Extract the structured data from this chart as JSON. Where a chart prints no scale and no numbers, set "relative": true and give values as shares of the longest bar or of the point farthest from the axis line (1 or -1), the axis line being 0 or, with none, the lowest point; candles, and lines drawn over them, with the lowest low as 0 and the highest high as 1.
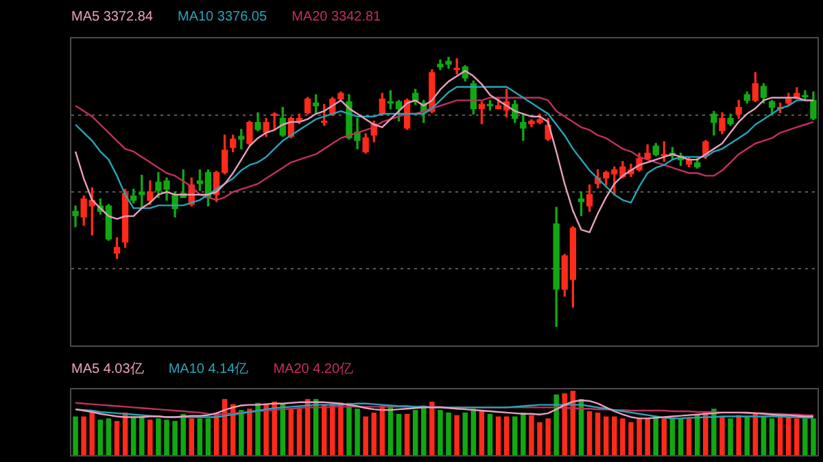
{
  "chart_data": [
    {
      "type": "candlestick",
      "relative": true,
      "grid": "y",
      "legend": "top left",
      "marker": "none",
      "categories": [
        null,
        null,
        null,
        null,
        null,
        null,
        null,
        null,
        null,
        null,
        null,
        null,
        null,
        null,
        null,
        null,
        null,
        null,
        null,
        null,
        null,
        null,
        null,
        null,
        null,
        null,
        null,
        null,
        null,
        null,
        null,
        null,
        null,
        null,
        null,
        null,
        null,
        null,
        null,
        null,
        null,
        null,
        null,
        null,
        null,
        null,
        null,
        null,
        null,
        null,
        null,
        null,
        null,
        null,
        null,
        null,
        null,
        null,
        null,
        null,
        null,
        null,
        null,
        null,
        null,
        null,
        null,
        null,
        null,
        null,
        null,
        null,
        null,
        null,
        null,
        null,
        null,
        null,
        null,
        null,
        null,
        null,
        null,
        null,
        null,
        null,
        null,
        null,
        null,
        null
      ],
      "ohlc": [
        [
          0.428,
          0.448,
          0.371,
          0.412
        ],
        [
          0.407,
          0.485,
          0.376,
          0.474
        ],
        [
          0.448,
          0.515,
          0.34,
          0.469
        ],
        [
          0.448,
          0.474,
          0.418,
          0.428
        ],
        [
          0.448,
          0.454,
          0.32,
          0.325
        ],
        [
          0.273,
          0.33,
          0.253,
          0.294
        ],
        [
          0.314,
          0.51,
          0.294,
          0.495
        ],
        [
          0.485,
          0.51,
          0.459,
          0.469
        ],
        [
          0.5,
          0.562,
          0.443,
          0.49
        ],
        [
          0.469,
          0.541,
          0.454,
          0.5
        ],
        [
          0.536,
          0.572,
          0.479,
          0.505
        ],
        [
          0.541,
          0.552,
          0.469,
          0.51
        ],
        [
          0.49,
          0.5,
          0.407,
          0.438
        ],
        [
          0.495,
          0.582,
          0.479,
          0.479
        ],
        [
          0.454,
          0.552,
          0.448,
          0.526
        ],
        [
          0.541,
          0.582,
          0.505,
          0.531
        ],
        [
          0.572,
          0.582,
          0.448,
          0.479
        ],
        [
          0.49,
          0.577,
          0.464,
          0.572
        ],
        [
          0.572,
          0.711,
          0.567,
          0.655
        ],
        [
          0.665,
          0.711,
          0.649,
          0.696
        ],
        [
          0.706,
          0.732,
          0.66,
          0.696
        ],
        [
          0.68,
          0.763,
          0.675,
          0.758
        ],
        [
          0.758,
          0.794,
          0.727,
          0.732
        ],
        [
          0.722,
          0.773,
          0.706,
          0.758
        ],
        [
          0.784,
          0.794,
          0.732,
          0.789
        ],
        [
          0.773,
          0.814,
          0.706,
          0.711
        ],
        [
          0.706,
          0.778,
          0.701,
          0.773
        ],
        [
          0.763,
          0.789,
          0.753,
          0.773
        ],
        [
          0.794,
          0.851,
          0.789,
          0.845
        ],
        [
          0.83,
          0.861,
          0.789,
          0.82
        ],
        [
          0.758,
          0.825,
          0.747,
          0.763
        ],
        [
          0.789,
          0.851,
          0.784,
          0.845
        ],
        [
          0.845,
          0.871,
          0.84,
          0.866
        ],
        [
          0.835,
          0.861,
          0.696,
          0.701
        ],
        [
          0.722,
          0.773,
          0.66,
          0.691
        ],
        [
          0.649,
          0.716,
          0.644,
          0.701
        ],
        [
          0.711,
          0.763,
          0.686,
          0.753
        ],
        [
          0.789,
          0.866,
          0.784,
          0.845
        ],
        [
          0.835,
          0.876,
          0.809,
          0.83
        ],
        [
          0.835,
          0.84,
          0.763,
          0.809
        ],
        [
          0.737,
          0.845,
          0.732,
          0.84
        ],
        [
          0.866,
          0.881,
          0.825,
          0.835
        ],
        [
          0.83,
          0.84,
          0.758,
          0.799
        ],
        [
          0.799,
          0.954,
          0.794,
          0.943
        ],
        [
          0.974,
          0.99,
          0.954,
          0.964
        ],
        [
          0.985,
          1,
          0.959,
          0.974
        ],
        [
          0.954,
          0.995,
          0.938,
          0.959
        ],
        [
          0.964,
          0.969,
          0.912,
          0.923
        ],
        [
          0.902,
          0.912,
          0.789,
          0.809
        ],
        [
          0.809,
          0.835,
          0.753,
          0.825
        ],
        [
          0.825,
          0.84,
          0.804,
          0.82
        ],
        [
          0.809,
          0.851,
          0.809,
          0.82
        ],
        [
          0.804,
          0.881,
          0.778,
          0.835
        ],
        [
          0.825,
          0.84,
          0.758,
          0.773
        ],
        [
          0.758,
          0.789,
          0.691,
          0.737
        ],
        [
          0.753,
          0.768,
          0.742,
          0.763
        ],
        [
          0.758,
          0.789,
          0.753,
          0.768
        ],
        [
          0.696,
          0.773,
          0.691,
          0.747
        ],
        [
          0.381,
          0.443,
          0,
          0.139
        ],
        [
          0.139,
          0.268,
          0.113,
          0.263
        ],
        [
          0.175,
          0.371,
          0.072,
          0.366
        ],
        [
          0.474,
          0.5,
          0.412,
          0.464
        ],
        [
          0.448,
          0.526,
          0.428,
          0.49
        ],
        [
          0.531,
          0.582,
          0.515,
          0.552
        ],
        [
          0.552,
          0.577,
          0.526,
          0.572
        ],
        [
          0.567,
          0.593,
          0.49,
          0.582
        ],
        [
          0.557,
          0.613,
          0.552,
          0.593
        ],
        [
          0.567,
          0.603,
          0.557,
          0.582
        ],
        [
          0.582,
          0.644,
          0.577,
          0.624
        ],
        [
          0.624,
          0.675,
          0.619,
          0.644
        ],
        [
          0.67,
          0.68,
          0.634,
          0.639
        ],
        [
          0.634,
          0.686,
          0.613,
          0.639
        ],
        [
          0.644,
          0.665,
          0.619,
          0.634
        ],
        [
          0.634,
          0.644,
          0.598,
          0.619
        ],
        [
          0.603,
          0.629,
          0.593,
          0.619
        ],
        [
          0.608,
          0.624,
          0.588,
          0.593
        ],
        [
          0.639,
          0.691,
          0.624,
          0.686
        ],
        [
          0.789,
          0.799,
          0.711,
          0.758
        ],
        [
          0.727,
          0.794,
          0.716,
          0.773
        ],
        [
          0.773,
          0.789,
          0.747,
          0.753
        ],
        [
          0.789,
          0.84,
          0.773,
          0.814
        ],
        [
          0.861,
          0.871,
          0.83,
          0.84
        ],
        [
          0.84,
          0.943,
          0.835,
          0.902
        ],
        [
          0.892,
          0.902,
          0.83,
          0.851
        ],
        [
          0.835,
          0.84,
          0.794,
          0.814
        ],
        [
          0.809,
          0.83,
          0.794,
          0.814
        ],
        [
          0.83,
          0.866,
          0.825,
          0.845
        ],
        [
          0.851,
          0.887,
          0.845,
          0.866
        ],
        [
          0.858,
          0.876,
          0.84,
          0.853
        ],
        [
          0.84,
          0.871,
          0.768,
          0.773
        ]
      ],
      "colors": [
        "#12a812",
        "#ff2a1a",
        "#ff2a1a",
        "#12a812",
        "#12a812",
        "#ff2a1a",
        "#ff2a1a",
        "#12a812",
        "#12a812",
        "#ff2a1a",
        "#12a812",
        "#12a812",
        "#12a812",
        "#12a812",
        "#ff2a1a",
        "#12a812",
        "#12a812",
        "#ff2a1a",
        "#ff2a1a",
        "#ff2a1a",
        "#12a812",
        "#ff2a1a",
        "#12a812",
        "#ff2a1a",
        "#ff2a1a",
        "#12a812",
        "#ff2a1a",
        "#ff2a1a",
        "#ff2a1a",
        "#12a812",
        "#ff2a1a",
        "#ff2a1a",
        "#ff2a1a",
        "#12a812",
        "#12a812",
        "#ff2a1a",
        "#ff2a1a",
        "#ff2a1a",
        "#12a812",
        "#12a812",
        "#ff2a1a",
        "#12a812",
        "#12a812",
        "#ff2a1a",
        "#12a812",
        "#12a812",
        "#ff2a1a",
        "#12a812",
        "#12a812",
        "#ff2a1a",
        "#12a812",
        "#ff2a1a",
        "#ff2a1a",
        "#12a812",
        "#12a812",
        "#ff2a1a",
        "#ff2a1a",
        "#ff2a1a",
        "#12a812",
        "#ff2a1a",
        "#ff2a1a",
        "#12a812",
        "#ff2a1a",
        "#ff2a1a",
        "#ff2a1a",
        "#ff2a1a",
        "#ff2a1a",
        "#ff2a1a",
        "#ff2a1a",
        "#ff2a1a",
        "#12a812",
        "#ff2a1a",
        "#12a812",
        "#12a812",
        "#ff2a1a",
        "#12a812",
        "#ff2a1a",
        "#12a812",
        "#ff2a1a",
        "#12a812",
        "#ff2a1a",
        "#12a812",
        "#ff2a1a",
        "#12a812",
        "#12a812",
        "#ff2a1a",
        "#ff2a1a",
        "#ff2a1a",
        "#12a812",
        "#12a812"
      ],
      "series": [
        {
          "name": "MA5 3372.84",
          "type": "line",
          "color": "#e8a0bf",
          "values": [
            0.65,
            0.55,
            0.47,
            0.44,
            0.41,
            0.4,
            0.41,
            0.41,
            0.44,
            0.46,
            0.49,
            0.5,
            0.49,
            0.49,
            0.49,
            0.49,
            0.49,
            0.5,
            0.53,
            0.57,
            0.62,
            0.67,
            0.7,
            0.72,
            0.73,
            0.75,
            0.76,
            0.76,
            0.77,
            0.79,
            0.8,
            0.82,
            0.84,
            0.81,
            0.79,
            0.77,
            0.75,
            0.74,
            0.77,
            0.8,
            0.83,
            0.84,
            0.82,
            0.84,
            0.88,
            0.91,
            0.93,
            0.95,
            0.93,
            0.9,
            0.86,
            0.84,
            0.82,
            0.8,
            0.79,
            0.78,
            0.78,
            0.76,
            0.65,
            0.53,
            0.43,
            0.36,
            0.35,
            0.42,
            0.48,
            0.53,
            0.56,
            0.58,
            0.6,
            0.61,
            0.62,
            0.63,
            0.64,
            0.63,
            0.62,
            0.62,
            0.64,
            0.66,
            0.68,
            0.72,
            0.76,
            0.79,
            0.81,
            0.84,
            0.85,
            0.85,
            0.85,
            0.85,
            0.84,
            0.84
          ]
        },
        {
          "name": "MA10 3376.05",
          "type": "line",
          "color": "#26a5b8",
          "values": [
            0.75,
            0.72,
            0.69,
            0.65,
            0.62,
            0.56,
            0.49,
            0.44,
            0.44,
            0.44,
            0.45,
            0.45,
            0.45,
            0.45,
            0.46,
            0.47,
            0.49,
            0.51,
            0.53,
            0.55,
            0.58,
            0.6,
            0.61,
            0.63,
            0.66,
            0.69,
            0.71,
            0.73,
            0.75,
            0.77,
            0.78,
            0.79,
            0.8,
            0.79,
            0.78,
            0.78,
            0.78,
            0.79,
            0.79,
            0.79,
            0.79,
            0.79,
            0.79,
            0.81,
            0.84,
            0.87,
            0.89,
            0.89,
            0.89,
            0.89,
            0.89,
            0.89,
            0.89,
            0.87,
            0.85,
            0.83,
            0.81,
            0.79,
            0.75,
            0.71,
            0.66,
            0.62,
            0.58,
            0.55,
            0.52,
            0.49,
            0.47,
            0.46,
            0.52,
            0.57,
            0.59,
            0.6,
            0.62,
            0.63,
            0.63,
            0.63,
            0.63,
            0.65,
            0.66,
            0.68,
            0.7,
            0.72,
            0.75,
            0.77,
            0.79,
            0.81,
            0.82,
            0.84,
            0.84,
            0.84
          ]
        },
        {
          "name": "MA20 3342.81",
          "type": "line",
          "color": "#c2305e",
          "values": [
            0.82,
            0.8,
            0.78,
            0.75,
            0.72,
            0.69,
            0.66,
            0.65,
            0.63,
            0.61,
            0.59,
            0.57,
            0.56,
            0.54,
            0.52,
            0.49,
            0.48,
            0.47,
            0.48,
            0.5,
            0.51,
            0.52,
            0.53,
            0.55,
            0.57,
            0.59,
            0.61,
            0.62,
            0.63,
            0.64,
            0.66,
            0.68,
            0.7,
            0.71,
            0.72,
            0.73,
            0.74,
            0.76,
            0.77,
            0.78,
            0.79,
            0.79,
            0.8,
            0.81,
            0.82,
            0.83,
            0.84,
            0.84,
            0.84,
            0.84,
            0.85,
            0.85,
            0.85,
            0.85,
            0.85,
            0.85,
            0.85,
            0.84,
            0.8,
            0.78,
            0.76,
            0.74,
            0.73,
            0.71,
            0.7,
            0.68,
            0.66,
            0.65,
            0.63,
            0.62,
            0.61,
            0.6,
            0.59,
            0.58,
            0.57,
            0.57,
            0.56,
            0.56,
            0.58,
            0.61,
            0.64,
            0.66,
            0.68,
            0.69,
            0.7,
            0.72,
            0.73,
            0.74,
            0.75,
            0.76
          ]
        }
      ]
    },
    {
      "type": "bar",
      "relative": true,
      "legend": "top left",
      "marker": "none",
      "categories": [
        null,
        null,
        null,
        null,
        null,
        null,
        null,
        null,
        null,
        null,
        null,
        null,
        null,
        null,
        null,
        null,
        null,
        null,
        null,
        null,
        null,
        null,
        null,
        null,
        null,
        null,
        null,
        null,
        null,
        null,
        null,
        null,
        null,
        null,
        null,
        null,
        null,
        null,
        null,
        null,
        null,
        null,
        null,
        null,
        null,
        null,
        null,
        null,
        null,
        null,
        null,
        null,
        null,
        null,
        null,
        null,
        null,
        null,
        null,
        null,
        null,
        null,
        null,
        null,
        null,
        null,
        null,
        null,
        null,
        null,
        null,
        null,
        null,
        null,
        null,
        null,
        null,
        null,
        null,
        null,
        null,
        null,
        null,
        null,
        null,
        null,
        null,
        null,
        null,
        null
      ],
      "series": [
        {
          "type": "bar",
          "colors": [
            "#12a812",
            "#ff2a1a",
            "#ff2a1a",
            "#12a812",
            "#12a812",
            "#ff2a1a",
            "#ff2a1a",
            "#12a812",
            "#12a812",
            "#ff2a1a",
            "#12a812",
            "#12a812",
            "#12a812",
            "#12a812",
            "#ff2a1a",
            "#12a812",
            "#12a812",
            "#ff2a1a",
            "#ff2a1a",
            "#ff2a1a",
            "#12a812",
            "#ff2a1a",
            "#12a812",
            "#ff2a1a",
            "#ff2a1a",
            "#12a812",
            "#ff2a1a",
            "#ff2a1a",
            "#ff2a1a",
            "#12a812",
            "#ff2a1a",
            "#ff2a1a",
            "#ff2a1a",
            "#12a812",
            "#12a812",
            "#ff2a1a",
            "#ff2a1a",
            "#ff2a1a",
            "#12a812",
            "#12a812",
            "#ff2a1a",
            "#12a812",
            "#12a812",
            "#ff2a1a",
            "#12a812",
            "#12a812",
            "#ff2a1a",
            "#12a812",
            "#12a812",
            "#ff2a1a",
            "#12a812",
            "#ff2a1a",
            "#ff2a1a",
            "#12a812",
            "#12a812",
            "#ff2a1a",
            "#ff2a1a",
            "#ff2a1a",
            "#12a812",
            "#ff2a1a",
            "#ff2a1a",
            "#12a812",
            "#ff2a1a",
            "#ff2a1a",
            "#ff2a1a",
            "#ff2a1a",
            "#ff2a1a",
            "#ff2a1a",
            "#ff2a1a",
            "#ff2a1a",
            "#12a812",
            "#ff2a1a",
            "#12a812",
            "#12a812",
            "#ff2a1a",
            "#12a812",
            "#ff2a1a",
            "#12a812",
            "#ff2a1a",
            "#12a812",
            "#ff2a1a",
            "#12a812",
            "#ff2a1a",
            "#12a812",
            "#12a812",
            "#ff2a1a",
            "#ff2a1a",
            "#ff2a1a",
            "#12a812",
            "#12a812"
          ],
          "values": [
            0.6,
            0.6,
            0.66,
            0.55,
            0.57,
            0.53,
            0.66,
            0.6,
            0.6,
            0.55,
            0.57,
            0.55,
            0.53,
            0.64,
            0.57,
            0.57,
            0.57,
            0.66,
            0.87,
            0.79,
            0.7,
            0.72,
            0.81,
            0.79,
            0.83,
            0.79,
            0.72,
            0.72,
            0.87,
            0.87,
            0.79,
            0.79,
            0.81,
            0.81,
            0.72,
            0.6,
            0.66,
            0.77,
            0.77,
            0.64,
            0.64,
            0.7,
            0.77,
            0.83,
            0.7,
            0.66,
            0.62,
            0.66,
            0.72,
            0.68,
            0.64,
            0.6,
            0.6,
            0.6,
            0.66,
            0.62,
            0.51,
            0.57,
            0.94,
            0.96,
            1,
            0.87,
            0.68,
            0.66,
            0.6,
            0.6,
            0.57,
            0.51,
            0.57,
            0.57,
            0.6,
            0.57,
            0.57,
            0.57,
            0.57,
            0.62,
            0.68,
            0.72,
            0.6,
            0.57,
            0.62,
            0.6,
            0.66,
            0.6,
            0.57,
            0.6,
            0.6,
            0.57,
            0.57,
            0.57
          ]
        },
        {
          "name": "MA5 4.03亿",
          "type": "line",
          "color": "#e8a0bf",
          "values": [
            0.71,
            0.69,
            0.67,
            0.64,
            0.62,
            0.6,
            0.59,
            0.59,
            0.59,
            0.6,
            0.6,
            0.59,
            0.59,
            0.6,
            0.61,
            0.61,
            0.62,
            0.65,
            0.7,
            0.74,
            0.77,
            0.78,
            0.78,
            0.79,
            0.8,
            0.8,
            0.81,
            0.82,
            0.82,
            0.82,
            0.82,
            0.81,
            0.8,
            0.78,
            0.76,
            0.73,
            0.71,
            0.7,
            0.7,
            0.71,
            0.72,
            0.73,
            0.74,
            0.74,
            0.74,
            0.73,
            0.72,
            0.71,
            0.7,
            0.69,
            0.68,
            0.67,
            0.66,
            0.65,
            0.64,
            0.64,
            0.63,
            0.65,
            0.71,
            0.78,
            0.83,
            0.85,
            0.84,
            0.8,
            0.74,
            0.68,
            0.63,
            0.59,
            0.57,
            0.57,
            0.58,
            0.59,
            0.6,
            0.61,
            0.62,
            0.63,
            0.64,
            0.65,
            0.66,
            0.66,
            0.66,
            0.66,
            0.65,
            0.64,
            0.63,
            0.62,
            0.62,
            0.61,
            0.6,
            0.6
          ]
        },
        {
          "name": "MA10 4.14亿",
          "type": "line",
          "color": "#26a5b8",
          "values": [
            0.71,
            0.7,
            0.69,
            0.67,
            0.66,
            0.65,
            0.64,
            0.63,
            0.62,
            0.61,
            0.6,
            0.59,
            0.59,
            0.59,
            0.59,
            0.59,
            0.59,
            0.59,
            0.61,
            0.63,
            0.65,
            0.67,
            0.69,
            0.71,
            0.73,
            0.74,
            0.75,
            0.76,
            0.77,
            0.78,
            0.78,
            0.78,
            0.78,
            0.79,
            0.8,
            0.8,
            0.79,
            0.78,
            0.77,
            0.76,
            0.76,
            0.75,
            0.75,
            0.74,
            0.74,
            0.74,
            0.74,
            0.74,
            0.74,
            0.74,
            0.74,
            0.74,
            0.74,
            0.75,
            0.76,
            0.77,
            0.78,
            0.78,
            0.78,
            0.78,
            0.78,
            0.78,
            0.76,
            0.74,
            0.72,
            0.7,
            0.68,
            0.66,
            0.64,
            0.62,
            0.6,
            0.58,
            0.57,
            0.57,
            0.58,
            0.58,
            0.59,
            0.59,
            0.6,
            0.6,
            0.6,
            0.6,
            0.6,
            0.6,
            0.6,
            0.6,
            0.59,
            0.59,
            0.58,
            0.58
          ]
        },
        {
          "name": "MA20 4.20亿",
          "type": "line",
          "color": "#c2305e",
          "values": [
            0.81,
            0.8,
            0.79,
            0.78,
            0.77,
            0.76,
            0.75,
            0.74,
            0.73,
            0.72,
            0.71,
            0.7,
            0.69,
            0.68,
            0.67,
            0.66,
            0.64,
            0.63,
            0.64,
            0.65,
            0.66,
            0.67,
            0.68,
            0.69,
            0.7,
            0.71,
            0.72,
            0.73,
            0.74,
            0.74,
            0.74,
            0.75,
            0.75,
            0.75,
            0.75,
            0.75,
            0.75,
            0.75,
            0.75,
            0.75,
            0.75,
            0.75,
            0.75,
            0.75,
            0.75,
            0.74,
            0.74,
            0.74,
            0.74,
            0.74,
            0.74,
            0.74,
            0.74,
            0.74,
            0.74,
            0.74,
            0.74,
            0.74,
            0.74,
            0.73,
            0.73,
            0.72,
            0.72,
            0.71,
            0.71,
            0.7,
            0.7,
            0.69,
            0.69,
            0.69,
            0.69,
            0.69,
            0.68,
            0.68,
            0.68,
            0.67,
            0.67,
            0.67,
            0.66,
            0.66,
            0.66,
            0.65,
            0.65,
            0.65,
            0.64,
            0.64,
            0.63,
            0.63,
            0.62,
            0.62
          ]
        }
      ]
    }
  ]
}
